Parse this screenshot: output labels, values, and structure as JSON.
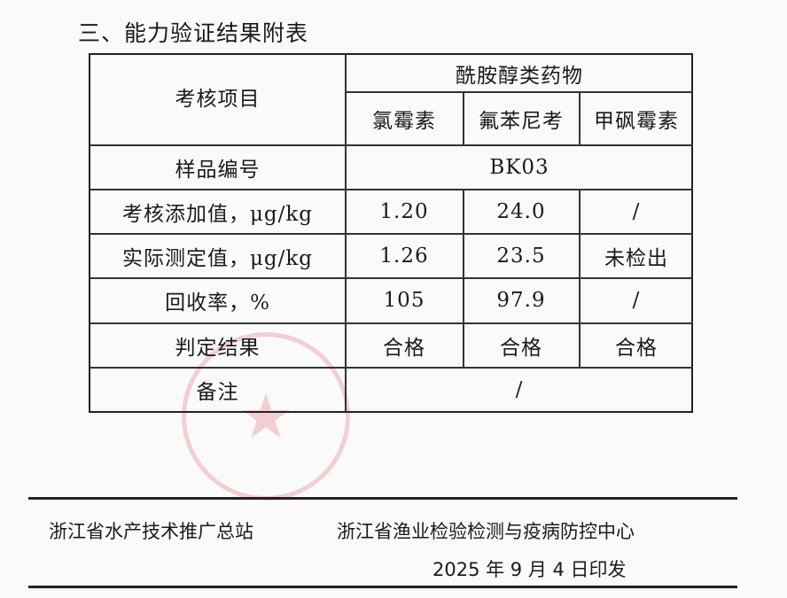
{
  "title": "三、能力验证结果附表",
  "table": {
    "header": {
      "item": "考核项目",
      "group": "酰胺醇类药物",
      "drugs": [
        "氯霉素",
        "氟苯尼考",
        "甲砜霉素"
      ]
    },
    "sample": {
      "label": "样品编号",
      "value": "BK03"
    },
    "rows": [
      {
        "label": "考核添加值，μg/kg",
        "values": [
          "1.20",
          "24.0",
          "/"
        ]
      },
      {
        "label": "实际测定值，μg/kg",
        "values": [
          "1.26",
          "23.5",
          "未检出"
        ]
      },
      {
        "label": "回收率，%",
        "values": [
          "105",
          "97.9",
          "/"
        ]
      },
      {
        "label": "判定结果",
        "values": [
          "合格",
          "合格",
          "合格"
        ]
      }
    ],
    "note": {
      "label": "备注",
      "value": "/"
    }
  },
  "footer": {
    "issuer1": "浙江省水产技术推广总站",
    "issuer2": "浙江省渔业检验检测与疫病防控中心",
    "date": "2025 年 9 月 4 日印发"
  }
}
